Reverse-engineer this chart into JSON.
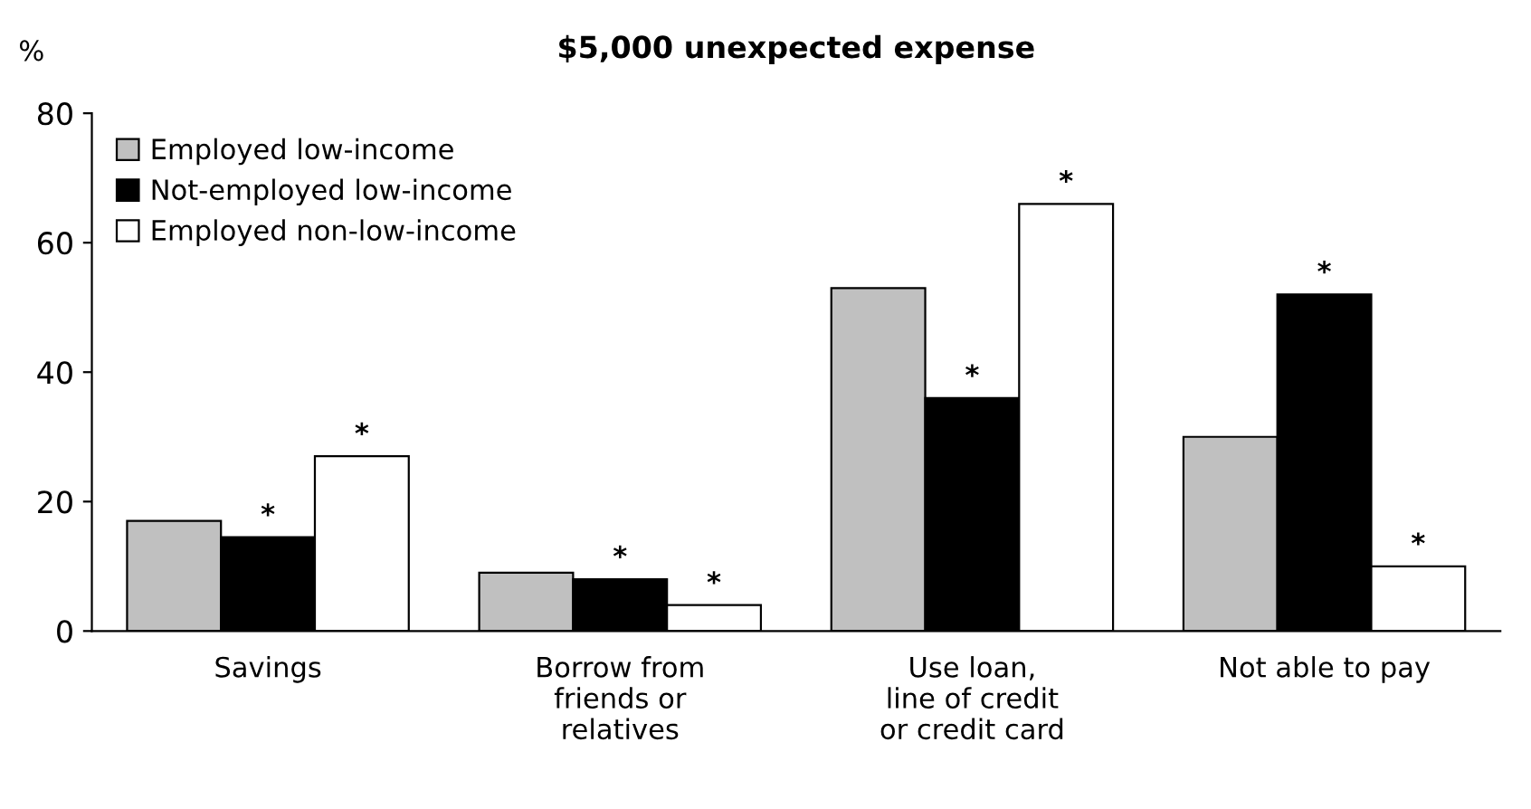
{
  "chart_data": {
    "type": "bar",
    "title": "$5,000 unexpected expense",
    "ylabel": "%",
    "categories": [
      "Savings",
      "Borrow from\nfriends or\nrelatives",
      "Use loan,\nline of credit\nor credit card",
      "Not able to pay"
    ],
    "series": [
      {
        "name": "Employed low-income",
        "color": "#c0c0c0",
        "values": [
          17,
          9,
          53,
          30
        ]
      },
      {
        "name": "Not-employed low-income",
        "color": "#000000",
        "values": [
          14.5,
          8,
          36,
          52
        ],
        "value_labels": [
          "*",
          "*",
          "*",
          "*"
        ]
      },
      {
        "name": "Employed non-low-income",
        "color": "#ffffff",
        "values": [
          27,
          4,
          66,
          10
        ],
        "value_labels": [
          "*",
          "*",
          "*",
          "*"
        ]
      }
    ],
    "ylim": [
      0,
      80
    ],
    "yticks": [
      0,
      20,
      40,
      60,
      80
    ],
    "grid": false,
    "legend": "top left"
  }
}
